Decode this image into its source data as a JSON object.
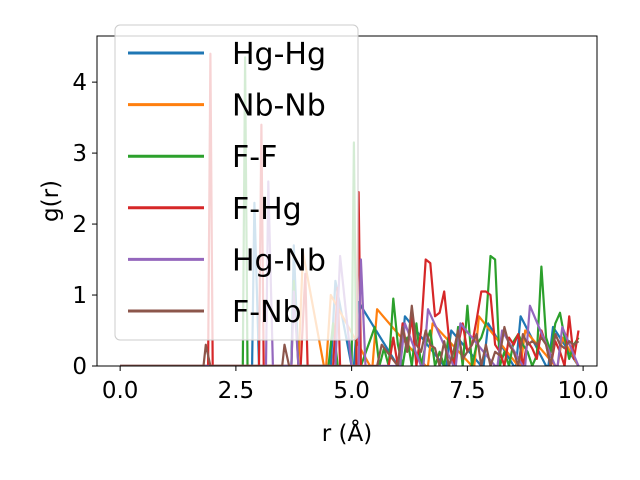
{
  "chart_data": {
    "type": "line",
    "title": "",
    "xlabel": "r (Å)",
    "ylabel": "g(r)",
    "xlim": [
      -0.5,
      10.3
    ],
    "ylim": [
      0,
      4.65
    ],
    "xticks": [
      0.0,
      2.5,
      5.0,
      7.5,
      10.0
    ],
    "xtick_labels": [
      "0.0",
      "2.5",
      "5.0",
      "7.5",
      "10.0"
    ],
    "yticks": [
      0,
      1,
      2,
      3,
      4
    ],
    "ytick_labels": [
      "0",
      "1",
      "2",
      "3",
      "4"
    ],
    "grid": false,
    "legend_position": "top-left",
    "series": [
      {
        "name": "Hg-Hg",
        "color": "#1f77b4",
        "x": [
          0.0,
          2.85,
          2.9,
          3.0,
          3.05,
          3.7,
          3.75,
          3.85,
          4.5,
          4.55,
          4.65,
          5.0,
          5.05,
          5.15,
          6.0,
          6.05,
          6.15,
          7.0,
          7.05,
          7.15,
          7.8,
          7.85,
          7.95,
          8.5,
          8.55,
          8.65,
          9.2,
          9.25,
          9.35,
          9.9
        ],
        "y": [
          0,
          0,
          2.3,
          0,
          0,
          0,
          1.7,
          0,
          0,
          0,
          1.2,
          0,
          0,
          0.9,
          0,
          0,
          0.7,
          0,
          0,
          0.5,
          0,
          0,
          0.6,
          0,
          0,
          0.7,
          0,
          0,
          0.55,
          0
        ]
      },
      {
        "name": "Nb-Nb",
        "color": "#ff7f0e",
        "x": [
          0.0,
          3.8,
          3.85,
          3.95,
          4.4,
          4.45,
          4.55,
          5.4,
          5.45,
          5.55,
          6.6,
          6.65,
          6.75,
          7.6,
          7.65,
          7.75,
          8.6,
          8.65,
          8.75,
          9.4,
          9.45,
          9.55,
          9.9
        ],
        "y": [
          0,
          0,
          0,
          1.6,
          0,
          0,
          1.0,
          0,
          0,
          0.8,
          0,
          0,
          0.6,
          0,
          0,
          0.7,
          0,
          0,
          0.5,
          0,
          0,
          0.4,
          0
        ]
      },
      {
        "name": "F-F",
        "color": "#2ca02c",
        "x": [
          0.0,
          2.6,
          2.65,
          2.7,
          2.75,
          2.8,
          3.6,
          3.7,
          3.75,
          3.85,
          4.5,
          4.6,
          4.7,
          5.0,
          5.05,
          5.1,
          5.2,
          5.5,
          5.6,
          5.7,
          5.8,
          5.9,
          6.0,
          6.1,
          6.2,
          6.3,
          6.4,
          6.5,
          6.6,
          6.7,
          6.8,
          6.9,
          7.0,
          7.1,
          7.2,
          7.3,
          7.4,
          7.5,
          7.6,
          7.7,
          7.8,
          7.9,
          8.0,
          8.1,
          8.2,
          8.3,
          8.4,
          8.5,
          8.6,
          8.7,
          8.8,
          8.9,
          9.0,
          9.1,
          9.2,
          9.3,
          9.4,
          9.5,
          9.6,
          9.7,
          9.8,
          9.9
        ],
        "y": [
          0,
          0,
          0,
          4.35,
          0,
          0,
          0,
          0,
          1.2,
          0,
          0,
          0.6,
          0,
          0,
          3.15,
          0,
          0,
          0.55,
          0,
          0.25,
          0,
          0.95,
          0.3,
          0,
          0.4,
          0,
          0.6,
          0,
          0.3,
          0.5,
          0,
          0.2,
          0,
          0.45,
          0,
          0.55,
          0,
          0.85,
          0,
          0.3,
          0.4,
          0.6,
          1.55,
          1.5,
          0,
          0.2,
          0,
          0.35,
          0.45,
          0.3,
          0.2,
          0,
          0.15,
          1.4,
          0.4,
          0.2,
          0.6,
          0.75,
          0.4,
          0.1,
          0.3,
          0.4
        ]
      },
      {
        "name": "F-Hg",
        "color": "#d62728",
        "x": [
          0.0,
          1.85,
          1.9,
          1.95,
          2.0,
          2.9,
          3.0,
          3.05,
          3.1,
          3.2,
          3.9,
          4.0,
          4.05,
          4.15,
          4.6,
          4.7,
          4.75,
          4.85,
          5.1,
          5.15,
          5.2,
          5.3,
          5.8,
          5.9,
          6.0,
          6.1,
          6.2,
          6.3,
          6.4,
          6.5,
          6.6,
          6.7,
          6.8,
          6.9,
          7.0,
          7.1,
          7.2,
          7.3,
          7.4,
          7.5,
          7.6,
          7.7,
          7.8,
          7.9,
          8.0,
          8.1,
          8.2,
          8.3,
          8.4,
          8.5,
          8.6,
          8.7,
          8.8,
          8.9,
          9.0,
          9.1,
          9.2,
          9.3,
          9.4,
          9.5,
          9.6,
          9.7,
          9.8,
          9.9
        ],
        "y": [
          0,
          0,
          0,
          4.4,
          0,
          0,
          0,
          3.4,
          0,
          0,
          0,
          1.3,
          0,
          0,
          0,
          1.1,
          0,
          0,
          0,
          2.45,
          0,
          0,
          0,
          0.4,
          0,
          0.6,
          0.2,
          0.7,
          0,
          0.5,
          1.5,
          1.45,
          0.7,
          0.75,
          1.05,
          0.4,
          0,
          0.3,
          0.6,
          0.2,
          0.3,
          0.65,
          1.05,
          1.05,
          1.0,
          0.3,
          0.2,
          0,
          0.4,
          0.3,
          0.45,
          0,
          0.35,
          0.25,
          0.1,
          0.5,
          0.3,
          0,
          0.35,
          0.2,
          0,
          0.7,
          0.1,
          0.5
        ]
      },
      {
        "name": "Hg-Nb",
        "color": "#9467bd",
        "x": [
          0.0,
          3.1,
          3.15,
          3.2,
          3.3,
          3.65,
          3.7,
          3.75,
          3.85,
          4.6,
          4.65,
          4.75,
          5.0,
          5.1,
          5.15,
          5.2,
          5.3,
          6.0,
          6.05,
          6.15,
          6.5,
          6.55,
          6.65,
          7.2,
          7.25,
          7.35,
          8.1,
          8.15,
          8.25,
          8.7,
          8.75,
          8.85,
          9.4,
          9.45,
          9.55,
          9.9
        ],
        "y": [
          0,
          0,
          0,
          2.6,
          0,
          0,
          0,
          1.05,
          0,
          0,
          0,
          1.55,
          0,
          0,
          0,
          1.5,
          0,
          0,
          0,
          0.6,
          0,
          0,
          0.8,
          0,
          0,
          0.6,
          0,
          0,
          0.5,
          0,
          0,
          0.85,
          0,
          0,
          0.55,
          0
        ]
      },
      {
        "name": "F-Nb",
        "color": "#8c564b",
        "x": [
          0.0,
          1.75,
          1.8,
          1.85,
          1.95,
          3.45,
          3.5,
          3.55,
          3.65,
          5.5,
          5.55,
          5.65,
          6.0,
          6.05,
          6.1,
          6.2,
          6.3,
          6.4,
          6.5,
          6.6,
          6.7,
          6.8,
          6.9,
          7.0,
          7.1,
          7.2,
          7.3,
          7.4,
          7.5,
          7.6,
          7.7,
          7.8,
          7.9,
          8.0,
          8.1,
          8.2,
          8.3,
          8.4,
          8.5,
          8.6,
          8.7,
          8.8,
          8.9,
          9.0,
          9.1,
          9.2,
          9.3,
          9.4,
          9.5,
          9.6,
          9.7,
          9.8,
          9.9
        ],
        "y": [
          0,
          0,
          0,
          0.3,
          0,
          0,
          0,
          0.3,
          0,
          0,
          0,
          0.3,
          0,
          0.3,
          0.55,
          0.2,
          0.85,
          0.3,
          0.2,
          0.5,
          0.3,
          0.25,
          0,
          0.35,
          0,
          0.2,
          0.5,
          0.1,
          0.2,
          0.3,
          0.45,
          0,
          0.3,
          0,
          0.2,
          0.15,
          0.55,
          0.3,
          0.2,
          0,
          0.45,
          0.3,
          0.35,
          0.3,
          0.4,
          0.3,
          0,
          0.45,
          0.3,
          0.25,
          0.35,
          0.3,
          0.35
        ]
      }
    ]
  }
}
